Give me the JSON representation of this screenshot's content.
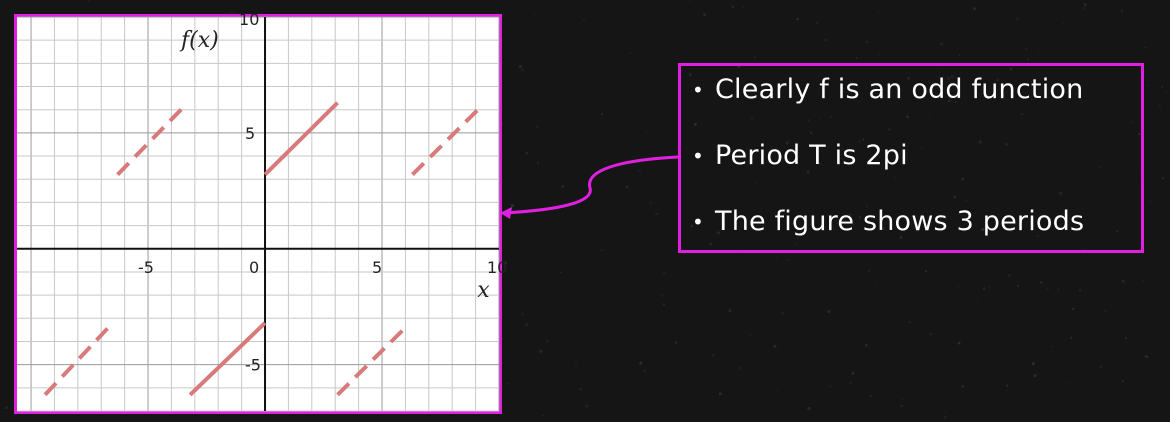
{
  "chart_data": {
    "type": "line",
    "xlabel": "x",
    "ylabel": "f(x)",
    "xlim": [
      -10,
      10
    ],
    "ylim": [
      -7,
      10
    ],
    "xticks": [
      -5,
      0,
      5,
      10
    ],
    "yticks": [
      5,
      -5
    ],
    "grid": true,
    "line_color": "#d97a7a",
    "series": [
      {
        "style": "dashed",
        "points": [
          [
            -9.4,
            -6.3
          ],
          [
            -6.6,
            -3.3
          ]
        ]
      },
      {
        "style": "dashed",
        "points": [
          [
            -6.3,
            3.2
          ],
          [
            -3.4,
            6.2
          ]
        ]
      },
      {
        "style": "solid",
        "points": [
          [
            -3.2,
            -6.3
          ],
          [
            0,
            -3.2
          ]
        ]
      },
      {
        "style": "solid",
        "points": [
          [
            0,
            3.2
          ],
          [
            3.1,
            6.3
          ]
        ]
      },
      {
        "style": "dashed",
        "points": [
          [
            3.1,
            -6.3
          ],
          [
            6.1,
            -3.3
          ]
        ]
      },
      {
        "style": "dashed",
        "points": [
          [
            6.3,
            3.2
          ],
          [
            9.2,
            6.1
          ]
        ]
      }
    ]
  },
  "callout": {
    "bullets": [
      "Clearly f is an odd function",
      "Period T is 2pi",
      "The figure shows 3 periods"
    ],
    "bullet_symbol": "•",
    "border_color": "#e020e0"
  }
}
